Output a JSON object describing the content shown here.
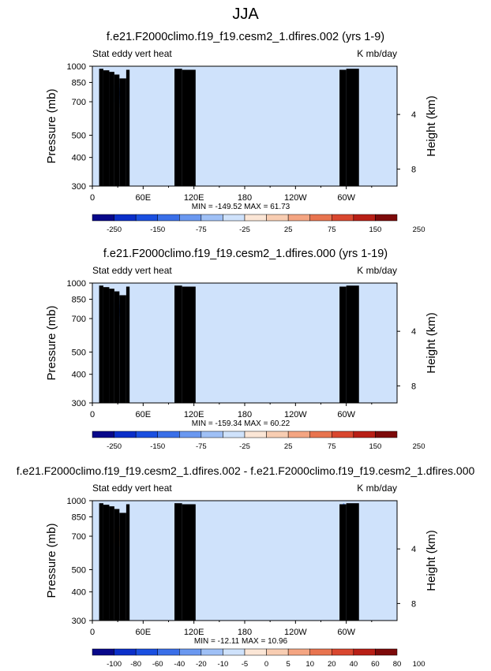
{
  "page_title": "JJA",
  "palette": [
    "#08088a",
    "#0b2fc9",
    "#1a4fe0",
    "#3a6fe8",
    "#6a98f0",
    "#9fc0f6",
    "#cfe2fb",
    "#fbe6d6",
    "#f8cdb2",
    "#f4a582",
    "#e8744f",
    "#d9472f",
    "#b81f16",
    "#7d0a0a"
  ],
  "x_tick_labels": [
    "0",
    "60E",
    "120E",
    "180",
    "120W",
    "60W"
  ],
  "pressure_tick_labels": [
    "300",
    "400",
    "500",
    "700",
    "850",
    "1000"
  ],
  "height_tick_labels": [
    "8",
    "4"
  ],
  "pressure_axis_label": "Pressure (mb)",
  "height_axis_label": "Height (km)",
  "chart_data": [
    {
      "type": "heatmap",
      "title": "f.e21.F2000climo.f19_f19.cesm2_1.dfires.002 (yrs 1-9)",
      "left_label": "Stat eddy vert heat",
      "right_label": "K mb/day",
      "stats": "MIN = -149.52  MAX =  61.73",
      "colorbar_levels": [
        "-250",
        "-200",
        "-150",
        "-100",
        "-75",
        "-50",
        "-25",
        "0",
        "25",
        "50",
        "75",
        "100",
        "150",
        "200",
        "250"
      ],
      "colorbar_labels": [
        "-250",
        "-150",
        "-75",
        "-25",
        "25",
        "75",
        "150",
        "250"
      ],
      "xlim": [
        0,
        360
      ],
      "ylim_mb": [
        1000,
        300
      ]
    },
    {
      "type": "heatmap",
      "title": "f.e21.F2000climo.f19_f19.cesm2_1.dfires.000 (yrs 1-19)",
      "left_label": "Stat eddy vert heat",
      "right_label": "K mb/day",
      "stats": "MIN = -159.34  MAX =  60.22",
      "colorbar_levels": [
        "-250",
        "-200",
        "-150",
        "-100",
        "-75",
        "-50",
        "-25",
        "0",
        "25",
        "50",
        "75",
        "100",
        "150",
        "200",
        "250"
      ],
      "colorbar_labels": [
        "-250",
        "-150",
        "-75",
        "-25",
        "25",
        "75",
        "150",
        "250"
      ],
      "xlim": [
        0,
        360
      ],
      "ylim_mb": [
        1000,
        300
      ]
    },
    {
      "type": "heatmap",
      "title": "f.e21.F2000climo.f19_f19.cesm2_1.dfires.002 - f.e21.F2000climo.f19_f19.cesm2_1.dfires.000",
      "left_label": "Stat eddy vert heat",
      "right_label": "K mb/day",
      "stats": "MIN = -12.11  MAX =  10.96",
      "colorbar_levels": [
        "-100",
        "-80",
        "-60",
        "-40",
        "-20",
        "-10",
        "-5",
        "0",
        "5",
        "10",
        "20",
        "40",
        "60",
        "80",
        "100"
      ],
      "colorbar_labels": [
        "-100",
        "-80",
        "-60",
        "-40",
        "-20",
        "-10",
        "-5",
        "0",
        "5",
        "10",
        "20",
        "40",
        "60",
        "80",
        "100"
      ],
      "xlim": [
        0,
        360
      ],
      "ylim_mb": [
        1000,
        300
      ]
    }
  ]
}
